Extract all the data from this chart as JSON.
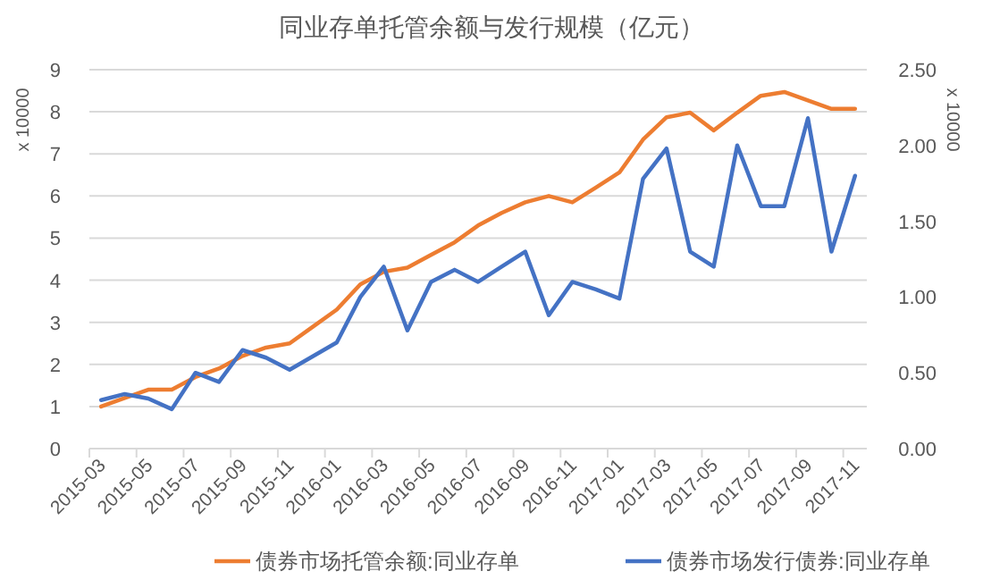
{
  "chart_data": {
    "type": "line",
    "title": "同业存单托管余额与发行规模（亿元）",
    "categories": [
      "2015-03",
      null,
      "2015-05",
      null,
      "2015-07",
      null,
      "2015-09",
      null,
      "2015-11",
      null,
      "2016-01",
      null,
      "2016-03",
      null,
      "2016-05",
      null,
      "2016-07",
      null,
      "2016-09",
      null,
      "2016-11",
      null,
      "2017-01",
      null,
      "2017-03",
      null,
      "2017-05",
      null,
      "2017-07",
      null,
      "2017-09",
      null,
      "2017-11"
    ],
    "series": [
      {
        "name": "债券市场托管余额:同业存单",
        "color": "#ed7d31",
        "values": [
          1.0,
          1.2,
          1.4,
          1.4,
          1.7,
          1.9,
          2.2,
          2.4,
          2.5,
          2.9,
          3.3,
          3.9,
          4.2,
          4.3,
          4.6,
          4.9,
          5.3,
          5.6,
          5.85,
          6.0,
          5.85,
          6.2,
          6.56,
          7.34,
          7.87,
          7.98,
          7.56,
          7.98,
          8.38,
          8.47,
          8.27,
          8.07,
          8.07
        ]
      },
      {
        "name": "债券市场发行债券:同业存单",
        "color": "#4472c4",
        "axis": "y2",
        "values": [
          0.32,
          0.36,
          0.33,
          0.26,
          0.5,
          0.44,
          0.65,
          0.6,
          0.52,
          0.61,
          0.7,
          1.0,
          1.2,
          0.78,
          1.1,
          1.18,
          1.1,
          1.2,
          1.3,
          0.88,
          1.1,
          1.05,
          0.99,
          1.78,
          1.98,
          1.3,
          1.2,
          2.0,
          1.6,
          1.6,
          2.18,
          1.3,
          1.8
        ]
      }
    ],
    "ylabel": "x 10000",
    "y2label": "x 10000",
    "ylim": [
      0,
      9
    ],
    "yticks": [
      0,
      1,
      2,
      3,
      4,
      5,
      6,
      7,
      8,
      9
    ],
    "y2lim": [
      0,
      2.5
    ],
    "y2ticks": [
      {
        "value": 0,
        "label": "0.00"
      },
      {
        "value": 0.5,
        "label": "0.50"
      },
      {
        "value": 1,
        "label": "1.00"
      },
      {
        "value": 1.5,
        "label": "1.50"
      },
      {
        "value": 2,
        "label": "2.00"
      },
      {
        "value": 2.5,
        "label": "2.50"
      }
    ],
    "grid": "y",
    "legend": "bottom",
    "marker": "none",
    "line_style": "solid"
  }
}
